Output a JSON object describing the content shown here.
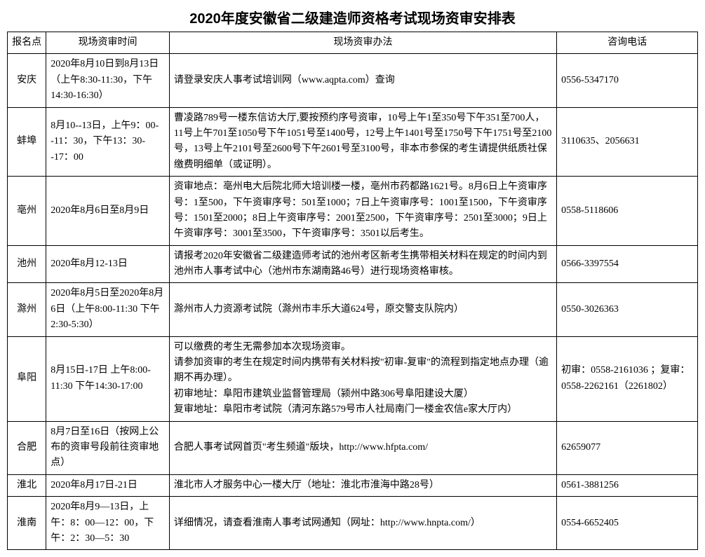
{
  "title": "2020年度安徽省二级建造师资格考试现场资审安排表",
  "headers": {
    "c0": "报名点",
    "c1": "现场资审时间",
    "c2": "现场资审办法",
    "c3": "咨询电话"
  },
  "rows": [
    {
      "loc": "安庆",
      "time": "2020年8月10日到8月13日（上午8:30-11:30，下午14:30-16:30）",
      "method": "请登录安庆人事考试培训网（www.aqpta.com）查询",
      "phone": "0556-5347170"
    },
    {
      "loc": "蚌埠",
      "time": "8月10--13日，上午9：00--11：30，下午13：30--17：00",
      "method": "曹凌路789号一楼东信访大厅,要按预约序号资审，10号上午1至350号下午351至700人，11号上午701至1050号下午1051号至1400号，12号上午1401号至1750号下午1751号至2100号，13号上午2101号至2600号下午2601号至3100号，非本市参保的考生请提供纸质社保缴费明细单（或证明）。",
      "phone": "3110635、2056631"
    },
    {
      "loc": "亳州",
      "time": "2020年8月6日至8月9日",
      "method": "资审地点：亳州电大后院北师大培训楼一楼，亳州市药都路1621号。8月6日上午资审序号：1至500，下午资审序号：501至1000；7日上午资审序号：1001至1500，下午资审序号：1501至2000；8日上午资审序号：2001至2500，下午资审序号：2501至3000；9日上午资审序号：3001至3500，下午资审序号：3501以后考生。",
      "phone": "0558-5118606"
    },
    {
      "loc": "池州",
      "time": "2020年8月12-13日",
      "method": "请报考2020年安徽省二级建造师考试的池州考区新考生携带相关材料在规定的时间内到池州市人事考试中心（池州市东湖南路46号）进行现场资格审核。",
      "phone": "0566-3397554"
    },
    {
      "loc": "滁州",
      "time": "2020年8月5日至2020年8月6日（上午8:00-11:30 下午2:30-5:30）",
      "method": "滁州市人力资源考试院（滁州市丰乐大道624号，原交警支队院内）",
      "phone": "0550-3026363"
    },
    {
      "loc": "阜阳",
      "time": "8月15日-17日 上午8:00-11:30 下午14:30-17:00",
      "method": "可以缴费的考生无需参加本次现场资审。\n请参加资审的考生在规定时间内携带有关材料按\"初审-复审\"的流程到指定地点办理（逾期不再办理）。\n初审地址：阜阳市建筑业监督管理局（颍州中路306号阜阳建设大厦）\n复审地址：阜阳市考试院（清河东路579号市人社局南门一楼金农信e家大厅内）",
      "phone": "初审：0558-2161036 ；复审：0558-2262161（2261802）"
    },
    {
      "loc": "合肥",
      "time": "8月7日至16日（按网上公布的资审号段前往资审地点）",
      "method": "合肥人事考试网首页\"考生频道\"版块，http://www.hfpta.com/",
      "phone": "62659077"
    },
    {
      "loc": "淮北",
      "time": "2020年8月17日-21日",
      "method": "淮北市人才服务中心一楼大厅（地址：淮北市淮海中路28号）",
      "phone": "0561-3881256"
    },
    {
      "loc": "淮南",
      "time": "2020年8月9—13日，上午：8：00—12：00，下午：2：30—5：30",
      "method": "详细情况，请查看淮南人事考试网通知（网址：http://www.hnpta.com/）",
      "phone": "0554-6652405"
    }
  ]
}
